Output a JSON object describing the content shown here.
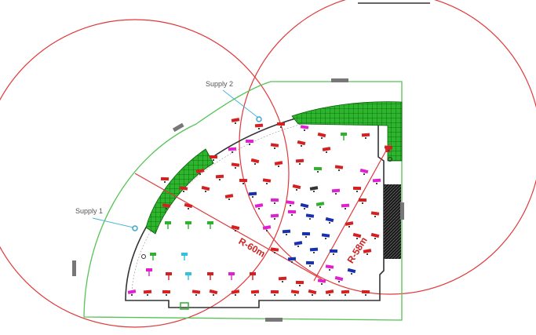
{
  "supplies": [
    {
      "label": "Supply 1"
    },
    {
      "label": "Supply 2"
    }
  ],
  "radii": [
    {
      "label": "R-60m"
    },
    {
      "label": "R-58m"
    }
  ],
  "colors": {
    "coverage_circle": "#e0393a",
    "boundary": "#55c455",
    "wall": "#333333",
    "green_hatch": "#1fa31f",
    "callout_line": "#4ab4d6",
    "supply_marker": "#3aa7cf",
    "marker_red": "#d42020",
    "marker_magenta": "#e020d0",
    "marker_blue": "#1830b0",
    "marker_green": "#30b030",
    "marker_cyan": "#30c0e0",
    "marker_dark": "#333333"
  }
}
